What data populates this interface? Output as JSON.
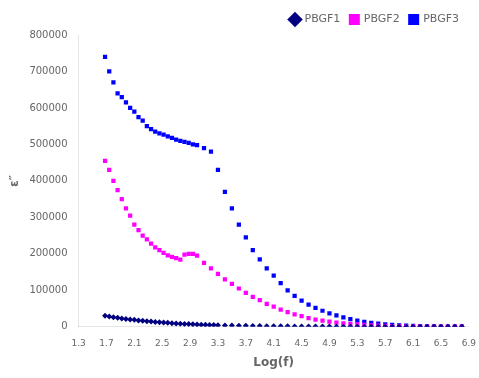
{
  "chart_data": {
    "type": "scatter",
    "xlabel": "Log(f)",
    "ylabel": "ε″",
    "xlim": [
      1.3,
      6.9
    ],
    "ylim": [
      0,
      800000
    ],
    "xticks": [
      1.3,
      1.7,
      2.1,
      2.5,
      2.9,
      3.3,
      3.7,
      4.1,
      4.5,
      4.9,
      5.3,
      5.7,
      6.1,
      6.5,
      6.9
    ],
    "yticks": [
      0,
      100000,
      200000,
      300000,
      400000,
      500000,
      600000,
      700000,
      800000
    ],
    "grid": false,
    "legend": "upper right",
    "series": [
      {
        "name": "PBGF1",
        "color": "#000080",
        "marker": "diamond",
        "x": [
          1.68,
          1.74,
          1.8,
          1.86,
          1.92,
          1.98,
          2.04,
          2.1,
          2.16,
          2.22,
          2.28,
          2.34,
          2.4,
          2.46,
          2.52,
          2.58,
          2.64,
          2.7,
          2.76,
          2.82,
          2.88,
          2.94,
          3.0,
          3.06,
          3.12,
          3.18,
          3.24,
          3.3,
          3.4,
          3.5,
          3.6,
          3.7,
          3.8,
          3.9,
          4.0,
          4.1,
          4.2,
          4.3,
          4.4,
          4.5,
          4.6,
          4.7,
          4.8,
          4.9,
          5.0,
          5.1,
          5.2,
          5.3,
          5.4,
          5.5,
          5.6,
          5.7,
          5.8,
          5.9,
          6.0,
          6.1,
          6.2,
          6.3,
          6.4,
          6.5,
          6.6,
          6.7,
          6.8
        ],
        "values": [
          30000,
          28000,
          26000,
          24500,
          23000,
          21500,
          20000,
          19000,
          17500,
          16500,
          15500,
          14500,
          13500,
          12500,
          11500,
          10800,
          10000,
          9300,
          8600,
          8000,
          7400,
          6800,
          6300,
          5800,
          5400,
          5000,
          4600,
          4200,
          3700,
          3300,
          2900,
          2600,
          2300,
          2000,
          1800,
          1600,
          1400,
          1200,
          1000,
          900,
          800,
          700,
          600,
          500,
          450,
          400,
          350,
          300,
          280,
          250,
          220,
          200,
          180,
          160,
          140,
          120,
          100,
          90,
          80,
          70,
          60,
          55,
          50
        ]
      },
      {
        "name": "PBGF2",
        "color": "#FF00FF",
        "marker": "square",
        "x": [
          1.68,
          1.74,
          1.8,
          1.86,
          1.92,
          1.98,
          2.04,
          2.1,
          2.16,
          2.22,
          2.28,
          2.34,
          2.4,
          2.46,
          2.52,
          2.58,
          2.64,
          2.7,
          2.76,
          2.82,
          2.88,
          2.94,
          3.0,
          3.1,
          3.2,
          3.3,
          3.4,
          3.5,
          3.6,
          3.7,
          3.8,
          3.9,
          4.0,
          4.1,
          4.2,
          4.3,
          4.4,
          4.5,
          4.6,
          4.7,
          4.8,
          4.9,
          5.0,
          5.1,
          5.2,
          5.3,
          5.4,
          5.5,
          5.6,
          5.7,
          5.8,
          5.9,
          6.0,
          6.1,
          6.2,
          6.3,
          6.4,
          6.5,
          6.6,
          6.7,
          6.8
        ],
        "values": [
          455000,
          430000,
          400000,
          375000,
          350000,
          325000,
          305000,
          280000,
          265000,
          250000,
          240000,
          228000,
          218000,
          210000,
          203000,
          196000,
          192000,
          188000,
          184000,
          198000,
          200000,
          200000,
          195000,
          175000,
          160000,
          145000,
          130000,
          118000,
          105000,
          93000,
          82000,
          73000,
          63000,
          55000,
          47000,
          40000,
          34000,
          29000,
          24000,
          20000,
          17000,
          14000,
          11500,
          9500,
          7800,
          6400,
          5200,
          4200,
          3400,
          2700,
          2200,
          1700,
          1400,
          1100,
          880,
          700,
          560,
          440,
          360,
          280,
          220
        ]
      },
      {
        "name": "PBGF3",
        "color": "#0000FF",
        "marker": "square",
        "x": [
          1.68,
          1.74,
          1.8,
          1.86,
          1.92,
          1.98,
          2.04,
          2.1,
          2.16,
          2.22,
          2.28,
          2.34,
          2.4,
          2.46,
          2.52,
          2.58,
          2.64,
          2.7,
          2.76,
          2.82,
          2.88,
          2.94,
          3.0,
          3.1,
          3.2,
          3.3,
          3.4,
          3.5,
          3.6,
          3.7,
          3.8,
          3.9,
          4.0,
          4.1,
          4.2,
          4.3,
          4.4,
          4.5,
          4.6,
          4.7,
          4.8,
          4.9,
          5.0,
          5.1,
          5.2,
          5.3,
          5.4,
          5.5,
          5.6,
          5.7,
          5.8,
          5.9,
          6.0,
          6.1,
          6.2,
          6.3,
          6.4,
          6.5,
          6.6,
          6.7,
          6.8
        ],
        "values": [
          740000,
          700000,
          670000,
          640000,
          630000,
          615000,
          600000,
          590000,
          575000,
          565000,
          550000,
          542000,
          535000,
          530000,
          527000,
          522000,
          518000,
          513000,
          510000,
          507000,
          504000,
          500000,
          498000,
          490000,
          480000,
          430000,
          370000,
          325000,
          280000,
          245000,
          210000,
          185000,
          160000,
          140000,
          120000,
          100000,
          85000,
          72000,
          61000,
          52000,
          44000,
          37000,
          31000,
          26000,
          21000,
          17000,
          13500,
          11000,
          8700,
          7000,
          5500,
          4200,
          3300,
          2500,
          1900,
          1400,
          1100,
          800,
          600,
          450,
          350
        ]
      }
    ]
  }
}
